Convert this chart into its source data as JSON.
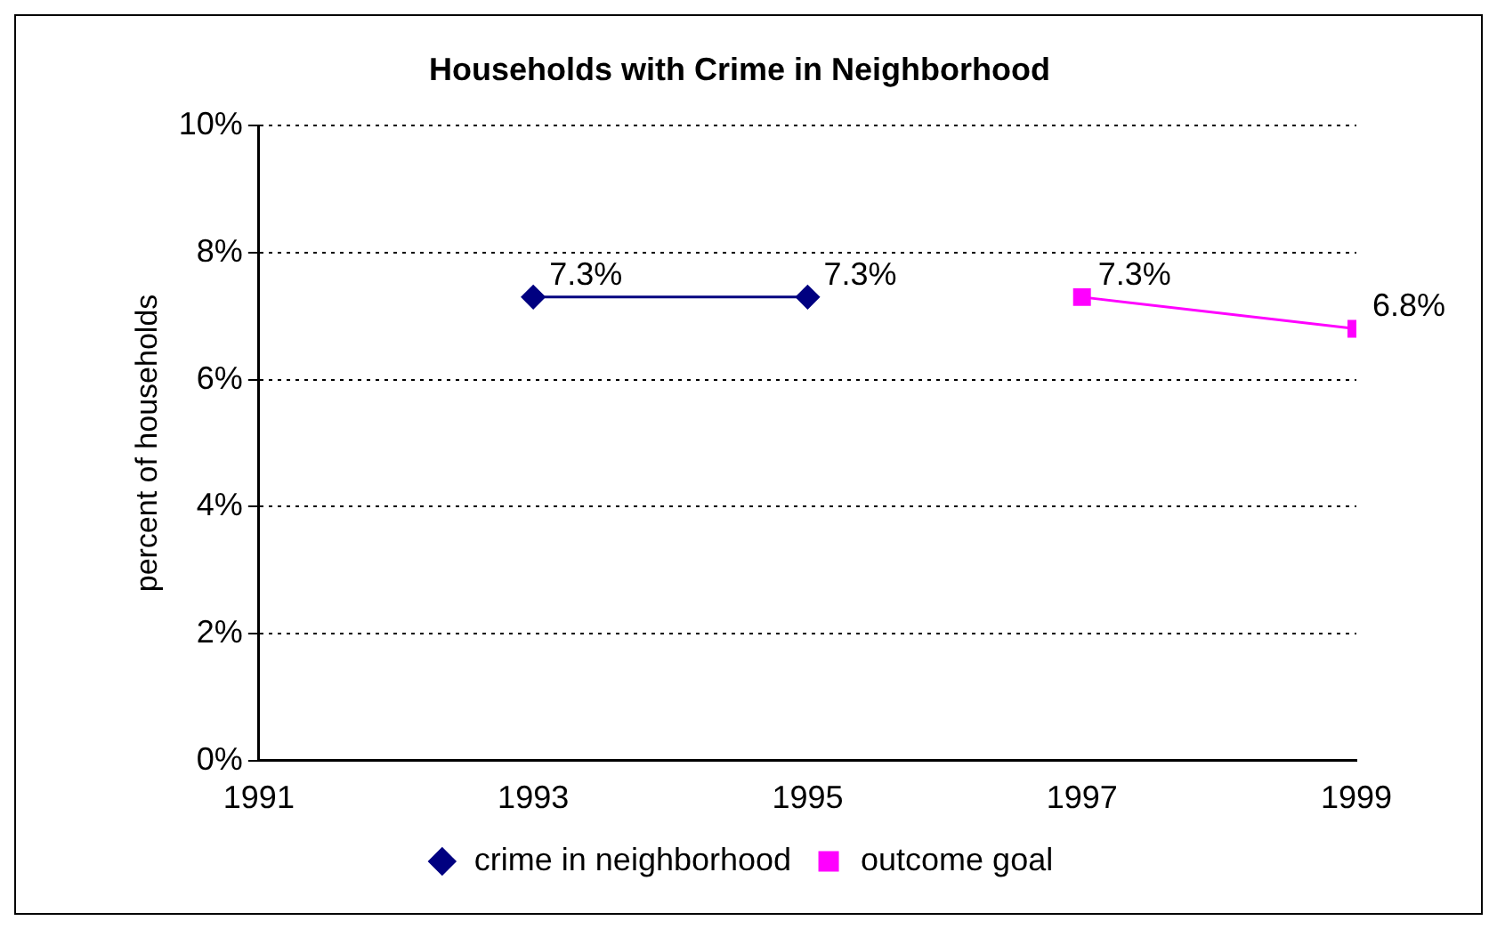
{
  "chart_data": {
    "type": "line",
    "title": "Households with Crime in Neighborhood",
    "ylabel": "percent of households",
    "xlim": [
      1991,
      1999
    ],
    "xticks": [
      1991,
      1993,
      1995,
      1997,
      1999
    ],
    "ylim": [
      0,
      10
    ],
    "yticks": [
      {
        "value": 0,
        "label": "0%"
      },
      {
        "value": 2,
        "label": "2%"
      },
      {
        "value": 4,
        "label": "4%"
      },
      {
        "value": 6,
        "label": "6%"
      },
      {
        "value": 8,
        "label": "8%"
      },
      {
        "value": 10,
        "label": "10%"
      }
    ],
    "grid": "y",
    "legend": "bottom",
    "series": [
      {
        "name": "crime in neighborhood",
        "color": "#000080",
        "x": [
          1993,
          1995
        ],
        "values": [
          7.3,
          7.3
        ],
        "value_labels": [
          "7.3%",
          "7.3%"
        ],
        "marker": "diamond"
      },
      {
        "name": "outcome goal",
        "color": "#ff00ff",
        "x": [
          1997,
          1999
        ],
        "values": [
          7.3,
          6.8
        ],
        "value_labels": [
          "7.3%",
          "6.8%"
        ],
        "marker": "square"
      }
    ]
  }
}
